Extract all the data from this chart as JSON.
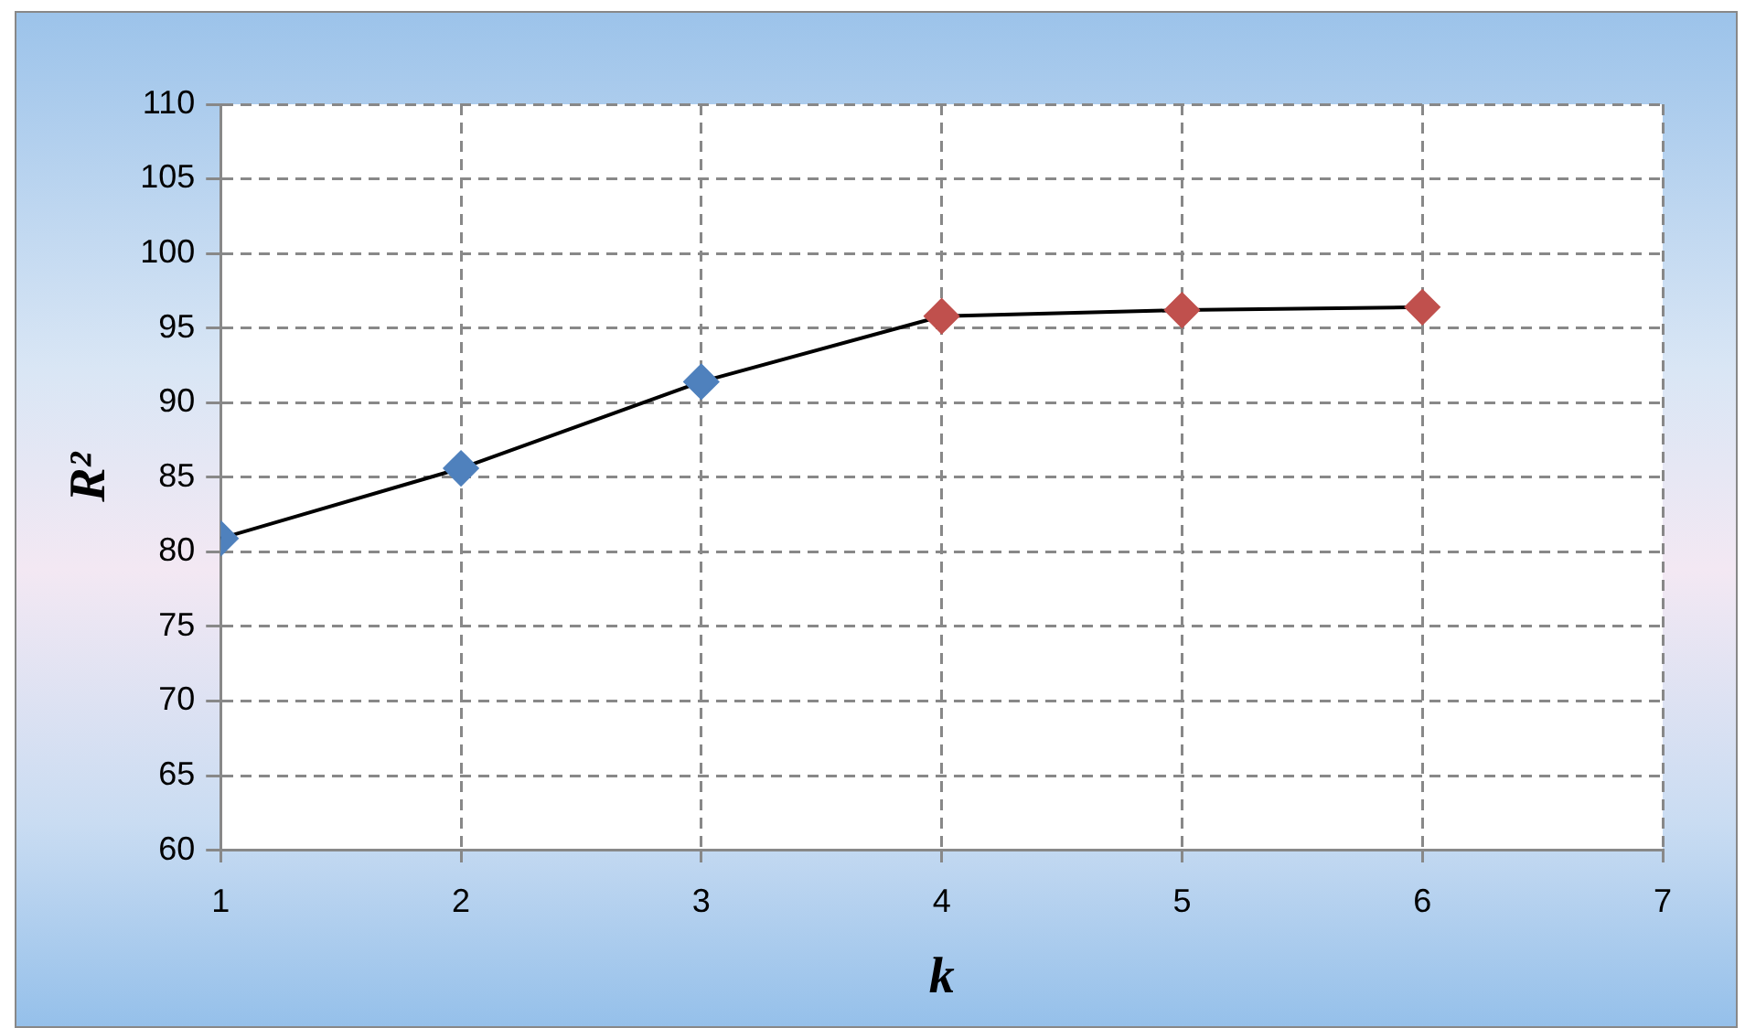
{
  "chart_data": {
    "type": "line",
    "xlabel": "k",
    "ylabel": "R²",
    "x": [
      1,
      2,
      3,
      4,
      5,
      6
    ],
    "series": [
      {
        "color": "#000000",
        "colors": [
          "#4f81bd",
          "#4f81bd",
          "#4f81bd",
          "#c0504d",
          "#c0504d",
          "#c0504d"
        ],
        "values": [
          80.9,
          85.6,
          91.4,
          95.8,
          96.2,
          96.4
        ]
      }
    ],
    "xlim": [
      1,
      7
    ],
    "xticks": [
      1,
      2,
      3,
      4,
      5,
      6,
      7
    ],
    "ylim": [
      60,
      110
    ],
    "yticks": [
      60,
      65,
      70,
      75,
      80,
      85,
      90,
      95,
      100,
      105,
      110
    ],
    "grid": true,
    "marker": "diamond",
    "line_style": "solid",
    "legend": false
  }
}
